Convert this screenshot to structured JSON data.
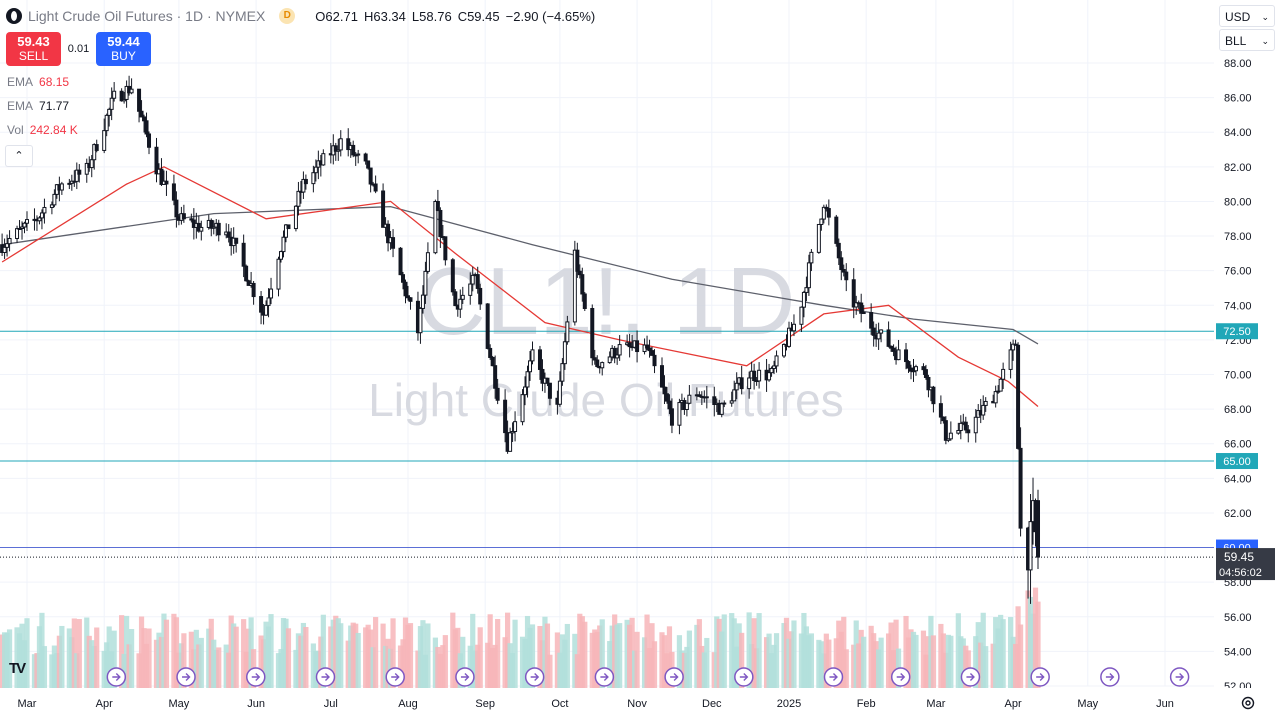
{
  "header": {
    "symbol_title": "Light Crude Oil Futures · 1D · NYMEX",
    "d_badge": "D",
    "ohlc": {
      "o_label": "O",
      "o": "62.71",
      "h_label": "H",
      "h": "63.34",
      "l_label": "L",
      "l": "58.76",
      "c_label": "C",
      "c": "59.45",
      "change": "−2.90 (−4.65%)"
    }
  },
  "trade": {
    "sell_price": "59.43",
    "sell_label": "SELL",
    "spread": "0.01",
    "buy_price": "59.44",
    "buy_label": "BUY"
  },
  "indicators": [
    {
      "name": "EMA",
      "value": "68.15"
    },
    {
      "name": "EMA",
      "value": "71.77"
    },
    {
      "name": "Vol",
      "value": "242.84 K"
    }
  ],
  "controls": {
    "collapse_glyph": "⌃",
    "currency": "USD",
    "unit": "BLL",
    "tv_logo": "TV"
  },
  "watermark": {
    "ticker": "CL1!, 1D",
    "name": "Light Crude Oil Futures"
  },
  "chart_data": {
    "type": "candlestick",
    "title": "Light Crude Oil Futures · 1D · NYMEX",
    "ylim": [
      52,
      88
    ],
    "y_ticks": [
      52,
      54,
      56,
      58,
      60,
      62,
      64,
      66,
      68,
      70,
      72,
      74,
      76,
      78,
      80,
      82,
      84,
      86,
      88
    ],
    "x_ticks": [
      {
        "label": "Mar",
        "date": "2024-03-01"
      },
      {
        "label": "Apr",
        "date": "2024-04-01"
      },
      {
        "label": "May",
        "date": "2024-05-01"
      },
      {
        "label": "Jun",
        "date": "2024-06-01"
      },
      {
        "label": "Jul",
        "date": "2024-07-01"
      },
      {
        "label": "Aug",
        "date": "2024-08-01"
      },
      {
        "label": "Sep",
        "date": "2024-09-01"
      },
      {
        "label": "Oct",
        "date": "2024-10-01"
      },
      {
        "label": "Nov",
        "date": "2024-11-01"
      },
      {
        "label": "Dec",
        "date": "2024-12-01"
      },
      {
        "label": "2025",
        "date": "2025-01-01"
      },
      {
        "label": "Feb",
        "date": "2025-02-01"
      },
      {
        "label": "Mar",
        "date": "2025-03-01"
      },
      {
        "label": "Apr",
        "date": "2025-04-01"
      },
      {
        "label": "May",
        "date": "2025-05-01"
      },
      {
        "label": "Jun",
        "date": "2025-06-01"
      }
    ],
    "price_path": [
      [
        "2024-02-20",
        77.5
      ],
      [
        "2024-03-05",
        79.0
      ],
      [
        "2024-03-15",
        81.0
      ],
      [
        "2024-03-25",
        81.8
      ],
      [
        "2024-04-05",
        86.0
      ],
      [
        "2024-04-12",
        86.6
      ],
      [
        "2024-04-22",
        82.0
      ],
      [
        "2024-05-01",
        79.0
      ],
      [
        "2024-05-10",
        78.5
      ],
      [
        "2024-05-20",
        78.5
      ],
      [
        "2024-06-04",
        73.5
      ],
      [
        "2024-06-10",
        77.0
      ],
      [
        "2024-06-20",
        81.0
      ],
      [
        "2024-07-05",
        83.5
      ],
      [
        "2024-07-15",
        82.0
      ],
      [
        "2024-07-25",
        77.5
      ],
      [
        "2024-08-05",
        72.5
      ],
      [
        "2024-08-12",
        79.8
      ],
      [
        "2024-08-20",
        74.0
      ],
      [
        "2024-08-28",
        75.5
      ],
      [
        "2024-09-10",
        66.0
      ],
      [
        "2024-09-20",
        71.0
      ],
      [
        "2024-09-30",
        68.0
      ],
      [
        "2024-10-07",
        77.0
      ],
      [
        "2024-10-15",
        70.5
      ],
      [
        "2024-10-25",
        71.5
      ],
      [
        "2024-11-05",
        71.5
      ],
      [
        "2024-11-15",
        67.5
      ],
      [
        "2024-11-25",
        69.0
      ],
      [
        "2024-12-05",
        68.0
      ],
      [
        "2024-12-15",
        70.0
      ],
      [
        "2024-12-25",
        70.0
      ],
      [
        "2025-01-05",
        73.5
      ],
      [
        "2025-01-15",
        80.0
      ],
      [
        "2025-01-25",
        74.5
      ],
      [
        "2025-02-05",
        72.5
      ],
      [
        "2025-02-15",
        71.0
      ],
      [
        "2025-02-25",
        70.0
      ],
      [
        "2025-03-05",
        66.5
      ],
      [
        "2025-03-15",
        67.0
      ],
      [
        "2025-03-25",
        69.0
      ],
      [
        "2025-04-02",
        71.8
      ],
      [
        "2025-04-04",
        61.0
      ],
      [
        "2025-04-07",
        59.5
      ],
      [
        "2025-04-09",
        62.0
      ],
      [
        "2025-04-11",
        59.45
      ]
    ],
    "last_candle": {
      "open": 62.71,
      "high": 63.34,
      "low": 58.76,
      "close": 59.45
    },
    "ema_fast": {
      "value": 68.15,
      "path": [
        [
          "2024-02-20",
          76.5
        ],
        [
          "2024-04-10",
          81.0
        ],
        [
          "2024-04-25",
          82.0
        ],
        [
          "2024-06-05",
          79.0
        ],
        [
          "2024-07-25",
          80.0
        ],
        [
          "2024-08-20",
          77.0
        ],
        [
          "2024-09-25",
          73.0
        ],
        [
          "2024-10-25",
          72.0
        ],
        [
          "2024-12-15",
          70.5
        ],
        [
          "2025-01-15",
          73.5
        ],
        [
          "2025-02-10",
          74.0
        ],
        [
          "2025-03-10",
          71.0
        ],
        [
          "2025-03-30",
          69.6
        ],
        [
          "2025-04-11",
          68.15
        ]
      ]
    },
    "ema_slow": {
      "value": 71.77,
      "path": [
        [
          "2024-02-20",
          77.5
        ],
        [
          "2024-05-15",
          79.3
        ],
        [
          "2024-07-25",
          79.7
        ],
        [
          "2024-09-20",
          77.5
        ],
        [
          "2024-11-15",
          75.5
        ],
        [
          "2025-01-15",
          74.0
        ],
        [
          "2025-02-20",
          73.2
        ],
        [
          "2025-04-01",
          72.6
        ],
        [
          "2025-04-11",
          71.77
        ]
      ]
    },
    "horizontal_levels": [
      72.5,
      65.0,
      60.0
    ],
    "current_price_label": "59.45",
    "countdown": "04:56:02",
    "volume": {
      "last_value": "242.84 K"
    }
  }
}
